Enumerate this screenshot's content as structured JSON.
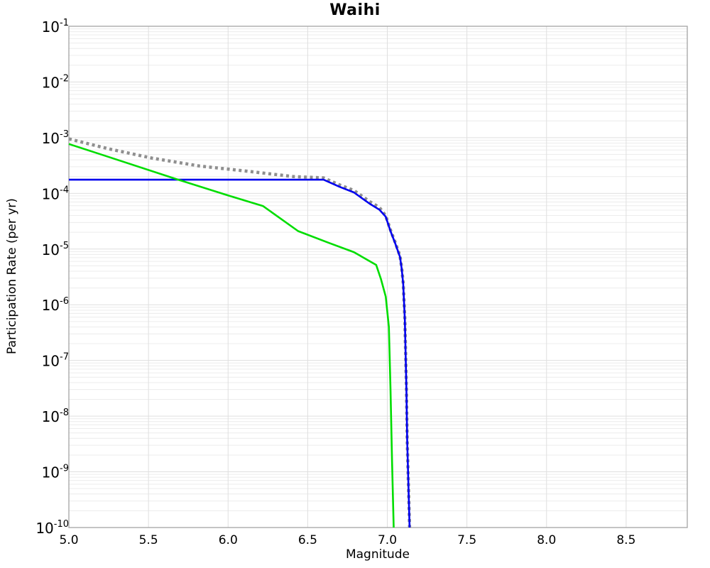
{
  "page": {
    "background": "#ffffff"
  },
  "chart_data": {
    "type": "line",
    "title": "Waihi",
    "xlabel": "Magnitude",
    "ylabel": "Participation Rate (per yr)",
    "x_range": [
      5.0,
      8.884
    ],
    "y_log_range": [
      -10,
      -1
    ],
    "x_ticks": [
      5.0,
      5.5,
      6.0,
      6.5,
      7.0,
      7.5,
      8.0,
      8.5
    ],
    "y_tick_base": "10",
    "y_tick_exponents": [
      -1,
      -2,
      -3,
      -4,
      -5,
      -6,
      -7,
      -8,
      -9,
      -10
    ],
    "grid": {
      "minor_color": "#ececec",
      "major_color": "#dfdfdf",
      "border_color": "#a3a3a3"
    },
    "legend": "none",
    "series": [
      {
        "name": "total-dotted-gray",
        "style": "dotted",
        "color": "#8f8f8f",
        "width": 4.5,
        "dash": "4 4.4",
        "points": [
          [
            5.0,
            0.00095
          ],
          [
            5.24,
            0.00064
          ],
          [
            5.52,
            0.00043
          ],
          [
            5.82,
            0.00031
          ],
          [
            6.12,
            0.00025
          ],
          [
            6.41,
            0.0002
          ],
          [
            6.6,
            0.00019
          ],
          [
            6.7,
            0.000142
          ],
          [
            6.79,
            0.000113
          ],
          [
            6.89,
            7.1e-05
          ],
          [
            6.95,
            5.6e-05
          ],
          [
            6.99,
            3.95e-05
          ],
          [
            7.02,
            2.2e-05
          ],
          [
            7.05,
            1.31e-05
          ],
          [
            7.08,
            7.5e-06
          ],
          [
            7.09,
            4.7e-06
          ],
          [
            7.1,
            2.45e-06
          ],
          [
            7.11,
            5.6e-07
          ],
          [
            7.12,
            3.2e-08
          ],
          [
            7.125,
            3.8e-09
          ],
          [
            7.14,
            1e-10
          ]
        ]
      },
      {
        "name": "blue-solid",
        "style": "solid",
        "color": "#0000ee",
        "width": 2.6,
        "dash": "",
        "points": [
          [
            5.0,
            0.000176
          ],
          [
            6.6,
            0.000176
          ],
          [
            6.7,
            0.000131
          ],
          [
            6.79,
            0.000104
          ],
          [
            6.89,
            6.5e-05
          ],
          [
            6.95,
            5.1e-05
          ],
          [
            6.99,
            3.8e-05
          ],
          [
            7.02,
            2.1e-05
          ],
          [
            7.05,
            1.26e-05
          ],
          [
            7.08,
            7.2e-06
          ],
          [
            7.09,
            4.5e-06
          ],
          [
            7.1,
            2.35e-06
          ],
          [
            7.11,
            5.4e-07
          ],
          [
            7.12,
            3.1e-08
          ],
          [
            7.125,
            3.7e-09
          ],
          [
            7.14,
            1e-10
          ]
        ]
      },
      {
        "name": "green-solid",
        "style": "solid",
        "color": "#00dd00",
        "width": 2.6,
        "dash": "",
        "points": [
          [
            5.0,
            0.00077
          ],
          [
            5.24,
            0.00046
          ],
          [
            5.67,
            0.000182
          ],
          [
            6.0,
            9.2e-05
          ],
          [
            6.22,
            5.9e-05
          ],
          [
            6.44,
            2.1e-05
          ],
          [
            6.63,
            1.3e-05
          ],
          [
            6.79,
            8.8e-06
          ],
          [
            6.93,
            5.2e-06
          ],
          [
            6.96,
            2.9e-06
          ],
          [
            6.99,
            1.4e-06
          ],
          [
            7.01,
            4e-07
          ],
          [
            7.02,
            3.1e-08
          ],
          [
            7.03,
            1.5e-09
          ],
          [
            7.04,
            1e-10
          ]
        ]
      }
    ]
  }
}
